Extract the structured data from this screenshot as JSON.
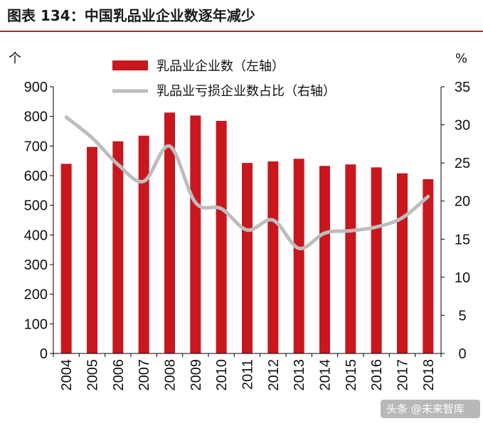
{
  "chart_data": {
    "type": "bar",
    "title": "图表 134：中国乳品业企业数逐年减少",
    "categories": [
      "2004",
      "2005",
      "2006",
      "2007",
      "2008",
      "2009",
      "2010",
      "2011",
      "2012",
      "2013",
      "2014",
      "2015",
      "2016",
      "2017",
      "2018"
    ],
    "series": [
      {
        "name": "乳品业企业数（左轴）",
        "type": "bar",
        "axis": "left",
        "color": "#c8171e",
        "values": [
          640,
          697,
          716,
          735,
          813,
          803,
          785,
          643,
          648,
          657,
          633,
          638,
          628,
          608,
          588
        ]
      },
      {
        "name": "乳品业亏损企业数占比（右轴）",
        "type": "line",
        "axis": "right",
        "color": "#bdbdbd",
        "values": [
          31.0,
          28.3,
          24.8,
          22.6,
          27.2,
          19.8,
          19.0,
          16.2,
          17.5,
          13.8,
          15.8,
          16.1,
          16.6,
          17.8,
          20.6
        ]
      }
    ],
    "y_left": {
      "unit": "个",
      "ylim": [
        0,
        900
      ],
      "ticks": [
        "0",
        "100",
        "200",
        "300",
        "400",
        "500",
        "600",
        "700",
        "800",
        "900"
      ]
    },
    "y_right": {
      "unit": "%",
      "ylim": [
        0,
        35
      ],
      "ticks": [
        "0",
        "5",
        "10",
        "15",
        "20",
        "25",
        "30",
        "35"
      ]
    },
    "legend": "top-center",
    "grid": false
  },
  "watermark": {
    "text": "头条 @未来智库"
  }
}
